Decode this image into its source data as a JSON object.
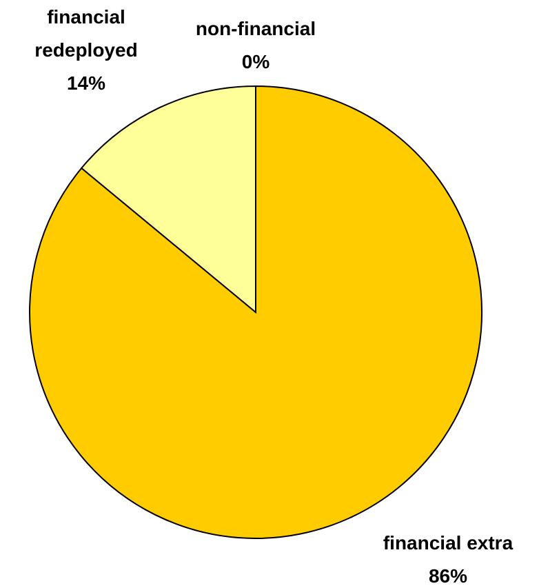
{
  "chart_data": {
    "type": "pie",
    "categories": [
      "non-financial",
      "financial extra",
      "financial redeployed"
    ],
    "values": [
      0,
      86,
      14
    ],
    "value_labels": [
      "0%",
      "86%",
      "14%"
    ],
    "colors": [
      "#ffffff",
      "#ffcc00",
      "#ffff99"
    ]
  }
}
